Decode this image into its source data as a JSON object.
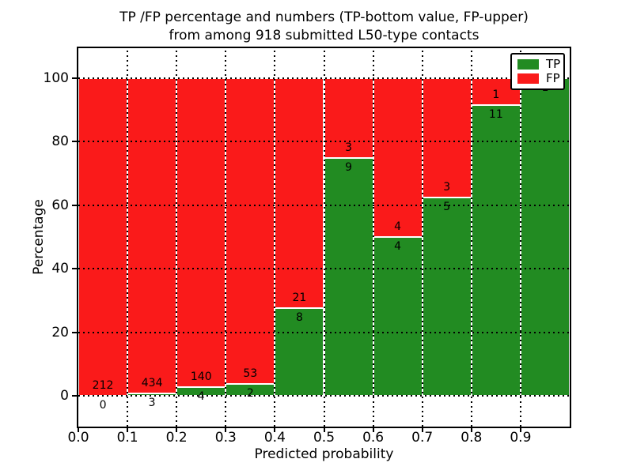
{
  "chart_data": {
    "type": "bar",
    "stacked": true,
    "title_line1": "TP /FP percentage and numbers (TP-bottom value, FP-upper)",
    "title_line2": "from among 918 submitted L50-type contacts",
    "xlabel": "Predicted probability",
    "ylabel": "Percentage",
    "total_contacts": 918,
    "bin_edges": [
      0.0,
      0.1,
      0.2,
      0.3,
      0.4,
      0.5,
      0.6,
      0.7,
      0.8,
      0.9,
      1.0
    ],
    "x_tick_labels": [
      "0.0",
      "0.1",
      "0.2",
      "0.3",
      "0.4",
      "0.5",
      "0.6",
      "0.7",
      "0.8",
      "0.9"
    ],
    "y_tick_values": [
      0,
      20,
      40,
      60,
      80,
      100
    ],
    "ylim": [
      -10,
      110
    ],
    "grid": "dotted black, both axes",
    "legend_position": "upper right",
    "series": [
      {
        "name": "TP",
        "color": "#228b22",
        "counts": [
          0,
          3,
          4,
          2,
          8,
          9,
          4,
          5,
          11,
          1
        ]
      },
      {
        "name": "FP",
        "color": "#fa1a1a",
        "counts": [
          212,
          434,
          140,
          53,
          21,
          3,
          4,
          3,
          1,
          0
        ]
      }
    ],
    "tp_percent_by_bin": [
      0,
      0.7,
      2.8,
      3.6,
      27.6,
      75,
      50,
      62.5,
      91.7,
      100
    ],
    "legend": [
      {
        "label": "TP",
        "color": "#228b22"
      },
      {
        "label": "FP",
        "color": "#fa1a1a"
      }
    ]
  }
}
